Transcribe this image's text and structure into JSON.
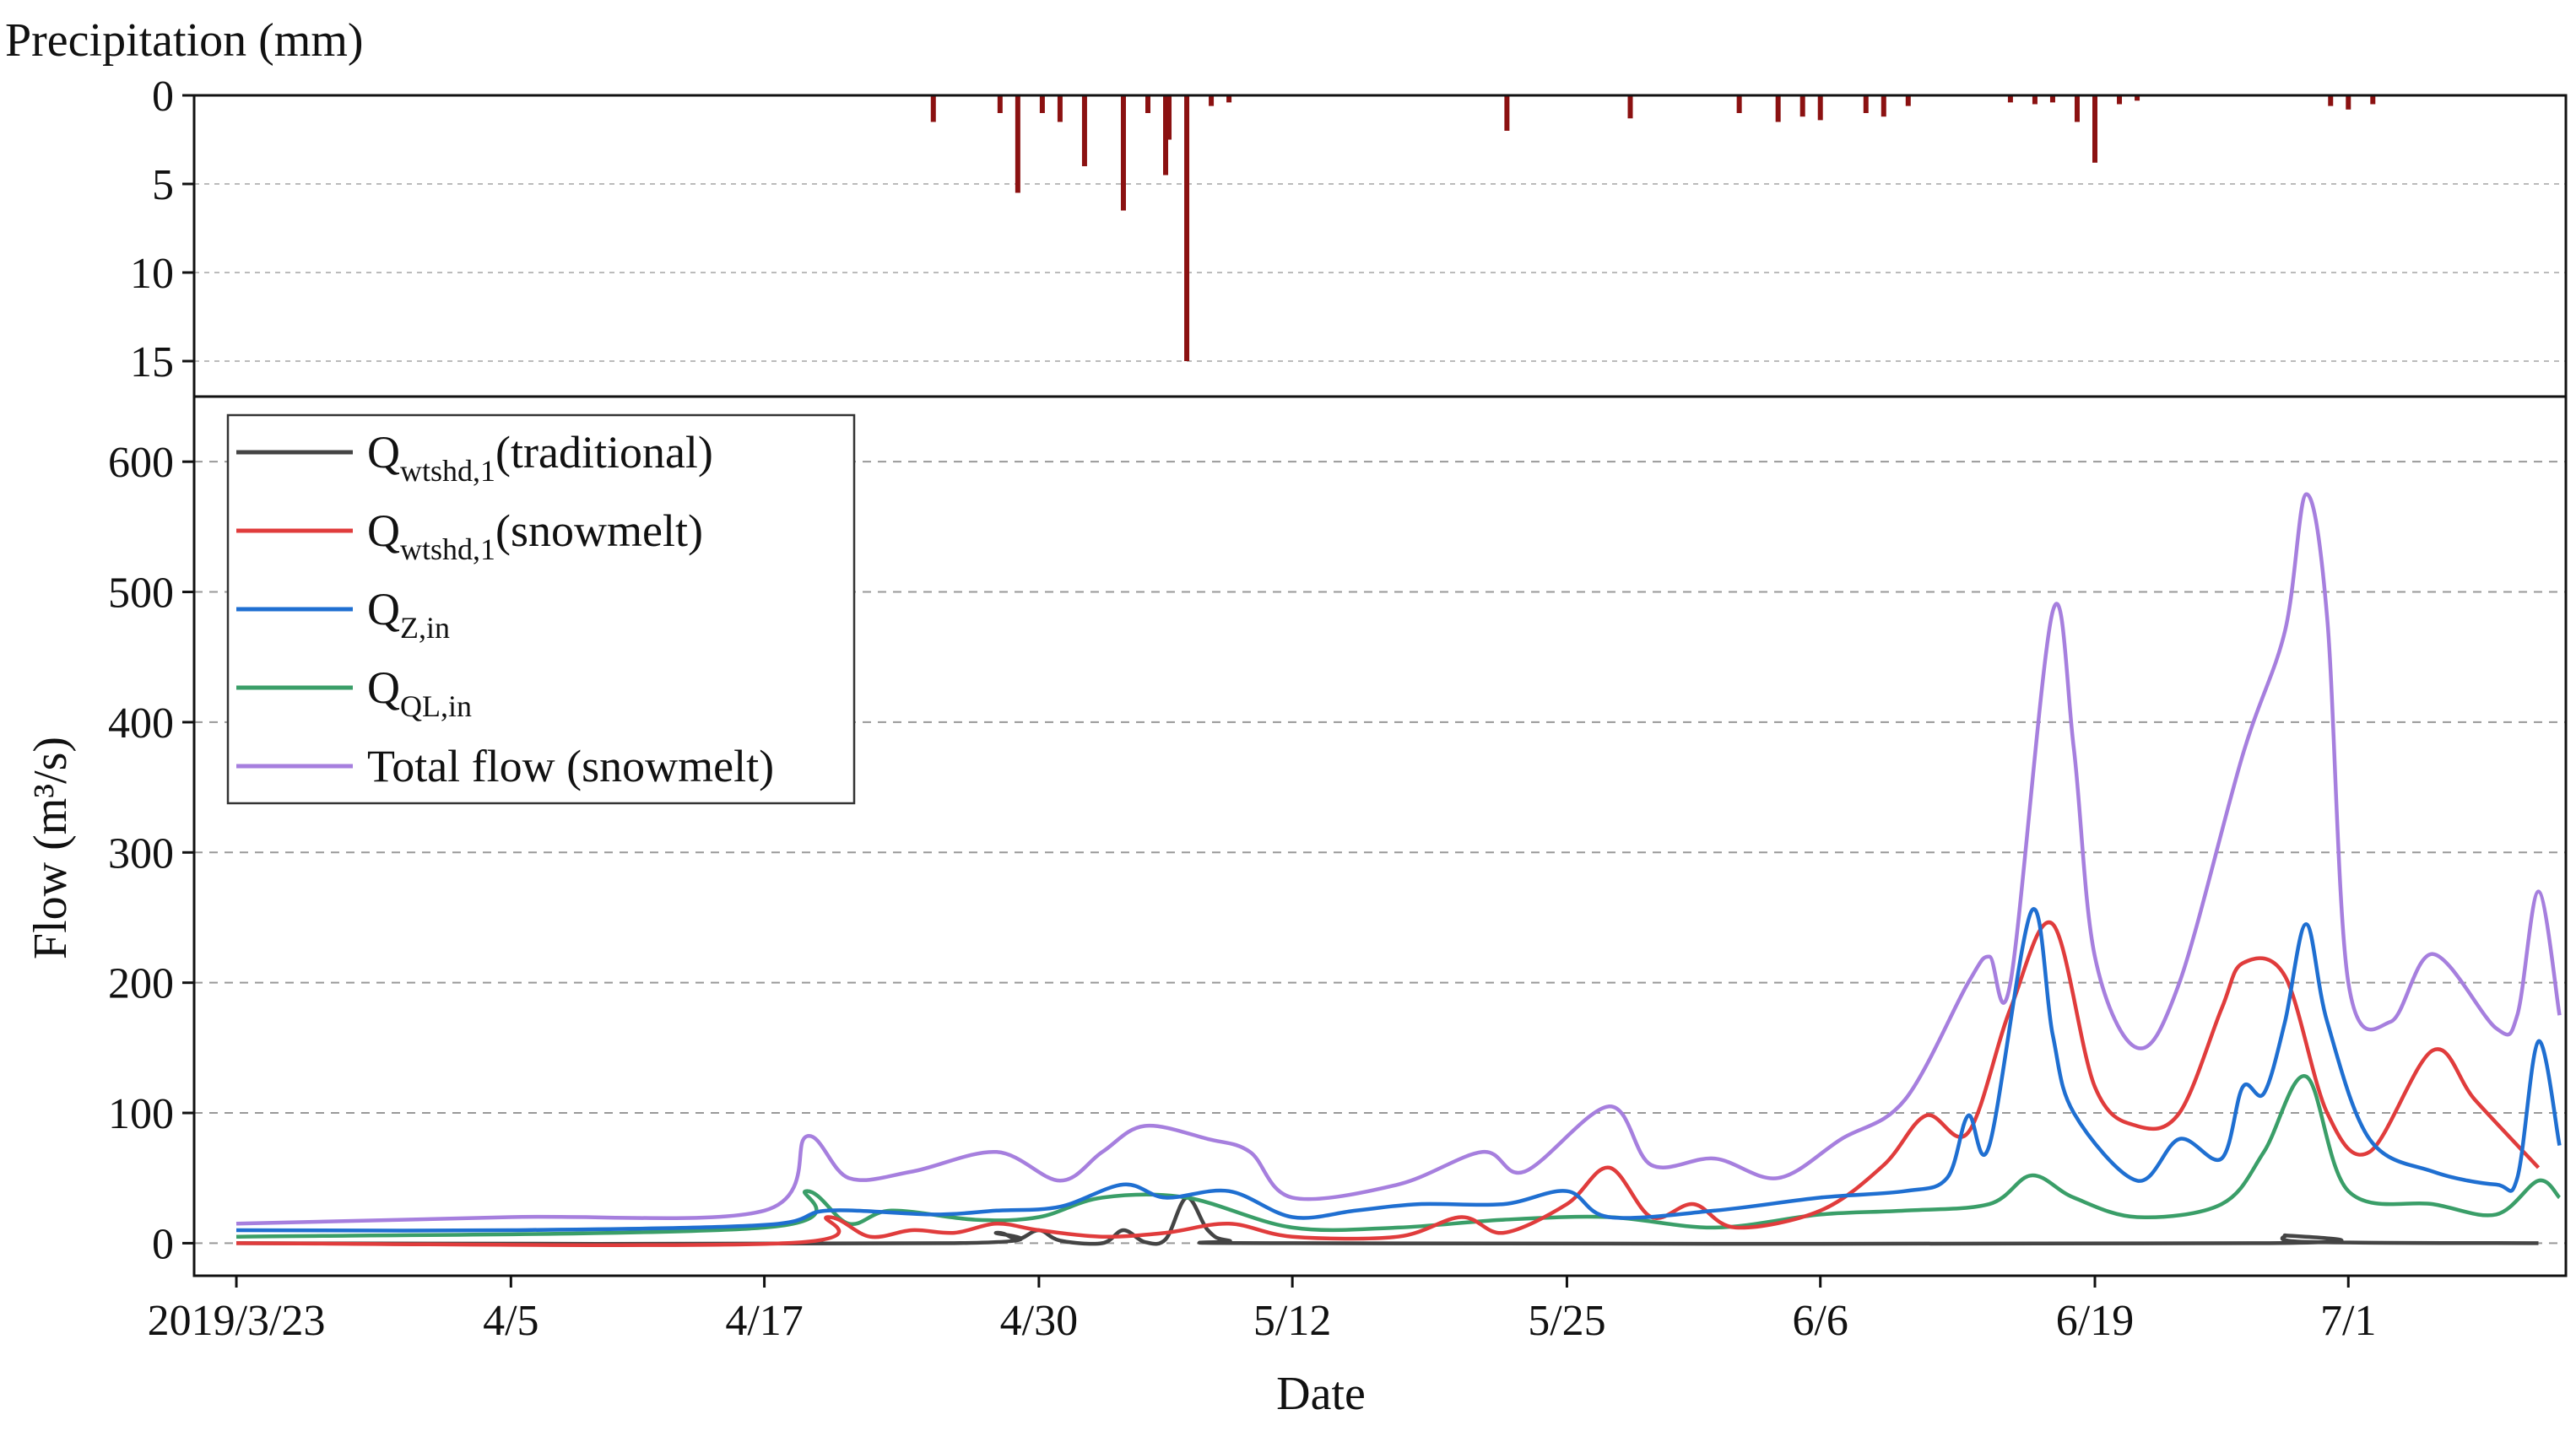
{
  "chart_data": [
    {
      "type": "bar",
      "title": "",
      "ylabel": "Precipitation (mm)",
      "y_inverted": true,
      "ylim": [
        0,
        17
      ],
      "yticks": [
        0,
        5,
        10,
        15
      ],
      "grid": "horizontal-dashed",
      "color": "#8b1111",
      "x": [
        "2019/4/25",
        "2019/4/28",
        "2019/4/29",
        "2019/4/30",
        "2019/5/1",
        "2019/5/2",
        "2019/5/4",
        "2019/5/5",
        "2019/5/6",
        "2019/5/6",
        "2019/5/7",
        "2019/5/8",
        "2019/5/9",
        "2019/5/22",
        "2019/5/28",
        "2019/6/2",
        "2019/6/4",
        "2019/6/5",
        "2019/6/6",
        "2019/6/8",
        "2019/6/9",
        "2019/6/10",
        "2019/6/15",
        "2019/6/16",
        "2019/6/17",
        "2019/6/18",
        "2019/6/19",
        "2019/6/20",
        "2019/6/21",
        "2019/6/30",
        "2019/7/1",
        "2019/7/2"
      ],
      "values": [
        1.5,
        1.0,
        5.5,
        1.0,
        1.5,
        4.0,
        6.5,
        1.0,
        4.5,
        2.5,
        15.0,
        0.6,
        0.4,
        2.0,
        1.3,
        1.0,
        1.5,
        1.2,
        1.4,
        1.0,
        1.2,
        0.6,
        0.4,
        0.5,
        0.4,
        1.5,
        3.8,
        0.5,
        0.3,
        0.6,
        0.8,
        0.5
      ]
    },
    {
      "type": "line",
      "title": "",
      "xlabel": "Date",
      "ylabel": "Flow (m³/s)",
      "ylim": [
        -25,
        650
      ],
      "yticks": [
        0,
        100,
        200,
        300,
        400,
        500,
        600
      ],
      "x_tick_labels": [
        "2019/3/23",
        "4/5",
        "4/17",
        "4/30",
        "5/12",
        "5/25",
        "6/6",
        "6/19",
        "7/1"
      ],
      "x_ticks": [
        "2019/3/23",
        "2019/4/5",
        "2019/4/17",
        "2019/4/30",
        "2019/5/12",
        "2019/5/25",
        "2019/6/6",
        "2019/6/19",
        "2019/7/1"
      ],
      "grid": "horizontal-dashed",
      "legend_position": "top-left",
      "series": [
        {
          "name": "Q_wtshd,1(traditional)",
          "label_main": "Q",
          "label_sub": "wtshd,1",
          "label_tail": "(traditional)",
          "color": "#444444",
          "points": [
            [
              "2019/3/23",
              0
            ],
            [
              "2019/4/26",
              0
            ],
            [
              "2019/4/28",
              8
            ],
            [
              "2019/4/29",
              3
            ],
            [
              "2019/4/30",
              10
            ],
            [
              "2019/5/1",
              2
            ],
            [
              "2019/5/3",
              0
            ],
            [
              "2019/5/4",
              10
            ],
            [
              "2019/5/5",
              1
            ],
            [
              "2019/5/6",
              3
            ],
            [
              "2019/5/7",
              35
            ],
            [
              "2019/5/8",
              10
            ],
            [
              "2019/5/9",
              2
            ],
            [
              "2019/5/12",
              0
            ],
            [
              "2019/6/27",
              0
            ],
            [
              "2019/6/28",
              6
            ],
            [
              "2019/6/29",
              1
            ],
            [
              "2019/7/10",
              0
            ]
          ]
        },
        {
          "name": "Q_wtshd,1(snowmelt)",
          "label_main": "Q",
          "label_sub": "wtshd,1",
          "label_tail": "(snowmelt)",
          "color": "#e03c3c",
          "points": [
            [
              "2019/3/23",
              0
            ],
            [
              "2019/4/18",
              0
            ],
            [
              "2019/4/20",
              20
            ],
            [
              "2019/4/22",
              5
            ],
            [
              "2019/4/24",
              10
            ],
            [
              "2019/4/26",
              8
            ],
            [
              "2019/4/28",
              15
            ],
            [
              "2019/4/30",
              10
            ],
            [
              "2019/5/3",
              5
            ],
            [
              "2019/5/6",
              8
            ],
            [
              "2019/5/9",
              15
            ],
            [
              "2019/5/12",
              5
            ],
            [
              "2019/5/17",
              5
            ],
            [
              "2019/5/20",
              20
            ],
            [
              "2019/5/22",
              8
            ],
            [
              "2019/5/25",
              30
            ],
            [
              "2019/5/27",
              58
            ],
            [
              "2019/5/29",
              20
            ],
            [
              "2019/5/31",
              30
            ],
            [
              "2019/6/2",
              12
            ],
            [
              "2019/6/6",
              25
            ],
            [
              "2019/6/9",
              60
            ],
            [
              "2019/6/11",
              98
            ],
            [
              "2019/6/13",
              85
            ],
            [
              "2019/6/15",
              180
            ],
            [
              "2019/6/17",
              245
            ],
            [
              "2019/6/19",
              120
            ],
            [
              "2019/6/21",
              90
            ],
            [
              "2019/6/23",
              100
            ],
            [
              "2019/6/25",
              180
            ],
            [
              "2019/6/26",
              215
            ],
            [
              "2019/6/28",
              205
            ],
            [
              "2019/6/30",
              100
            ],
            [
              "2019/7/2",
              70
            ],
            [
              "2019/7/5",
              148
            ],
            [
              "2019/7/7",
              110
            ],
            [
              "2019/7/10",
              58
            ]
          ]
        },
        {
          "name": "Q_Z,in",
          "label_main": "Q",
          "label_sub": "Z,in",
          "label_tail": "",
          "color": "#1f6fd1",
          "points": [
            [
              "2019/3/23",
              10
            ],
            [
              "2019/4/5",
              10
            ],
            [
              "2019/4/17",
              14
            ],
            [
              "2019/4/20",
              25
            ],
            [
              "2019/4/25",
              22
            ],
            [
              "2019/4/28",
              25
            ],
            [
              "2019/5/1",
              28
            ],
            [
              "2019/5/4",
              45
            ],
            [
              "2019/5/6",
              35
            ],
            [
              "2019/5/9",
              40
            ],
            [
              "2019/5/12",
              20
            ],
            [
              "2019/5/15",
              25
            ],
            [
              "2019/5/18",
              30
            ],
            [
              "2019/5/22",
              30
            ],
            [
              "2019/5/25",
              40
            ],
            [
              "2019/5/27",
              20
            ],
            [
              "2019/6/1",
              25
            ],
            [
              "2019/6/6",
              35
            ],
            [
              "2019/6/10",
              40
            ],
            [
              "2019/6/12",
              50
            ],
            [
              "2019/6/13",
              98
            ],
            [
              "2019/6/14",
              75
            ],
            [
              "2019/6/16",
              255
            ],
            [
              "2019/6/17",
              160
            ],
            [
              "2019/6/18",
              100
            ],
            [
              "2019/6/21",
              48
            ],
            [
              "2019/6/23",
              80
            ],
            [
              "2019/6/25",
              65
            ],
            [
              "2019/6/26",
              120
            ],
            [
              "2019/6/27",
              115
            ],
            [
              "2019/6/28",
              170
            ],
            [
              "2019/6/29",
              245
            ],
            [
              "2019/6/30",
              170
            ],
            [
              "2019/7/2",
              80
            ],
            [
              "2019/7/5",
              55
            ],
            [
              "2019/7/8",
              45
            ],
            [
              "2019/7/9",
              50
            ],
            [
              "2019/7/10",
              155
            ],
            [
              "2019/7/11",
              75
            ]
          ]
        },
        {
          "name": "Q_QL,in",
          "label_main": "Q",
          "label_sub": "QL,in",
          "label_tail": "",
          "color": "#3a9e68",
          "points": [
            [
              "2019/3/23",
              5
            ],
            [
              "2019/4/17",
              12
            ],
            [
              "2019/4/19",
              40
            ],
            [
              "2019/4/21",
              15
            ],
            [
              "2019/4/23",
              25
            ],
            [
              "2019/4/27",
              18
            ],
            [
              "2019/4/30",
              20
            ],
            [
              "2019/5/3",
              35
            ],
            [
              "2019/5/7",
              35
            ],
            [
              "2019/5/12",
              12
            ],
            [
              "2019/5/17",
              12
            ],
            [
              "2019/5/22",
              18
            ],
            [
              "2019/5/27",
              20
            ],
            [
              "2019/6/1",
              12
            ],
            [
              "2019/6/6",
              22
            ],
            [
              "2019/6/10",
              25
            ],
            [
              "2019/6/14",
              30
            ],
            [
              "2019/6/16",
              52
            ],
            [
              "2019/6/18",
              35
            ],
            [
              "2019/6/21",
              20
            ],
            [
              "2019/6/25",
              30
            ],
            [
              "2019/6/27",
              70
            ],
            [
              "2019/6/29",
              128
            ],
            [
              "2019/7/1",
              40
            ],
            [
              "2019/7/5",
              30
            ],
            [
              "2019/7/8",
              22
            ],
            [
              "2019/7/10",
              48
            ],
            [
              "2019/7/11",
              35
            ]
          ]
        },
        {
          "name": "Total flow (snowmelt)",
          "label_main": "Total flow (snowmelt)",
          "label_sub": "",
          "label_tail": "",
          "color": "#a67fde",
          "points": [
            [
              "2019/3/23",
              15
            ],
            [
              "2019/4/5",
              20
            ],
            [
              "2019/4/17",
              25
            ],
            [
              "2019/4/19",
              82
            ],
            [
              "2019/4/21",
              50
            ],
            [
              "2019/4/24",
              55
            ],
            [
              "2019/4/28",
              70
            ],
            [
              "2019/5/1",
              48
            ],
            [
              "2019/5/3",
              70
            ],
            [
              "2019/5/5",
              90
            ],
            [
              "2019/5/8",
              80
            ],
            [
              "2019/5/10",
              70
            ],
            [
              "2019/5/12",
              35
            ],
            [
              "2019/5/17",
              45
            ],
            [
              "2019/5/21",
              70
            ],
            [
              "2019/5/23",
              55
            ],
            [
              "2019/5/27",
              105
            ],
            [
              "2019/5/29",
              60
            ],
            [
              "2019/6/1",
              65
            ],
            [
              "2019/6/4",
              50
            ],
            [
              "2019/6/7",
              80
            ],
            [
              "2019/6/10",
              110
            ],
            [
              "2019/6/13",
              200
            ],
            [
              "2019/6/14",
              220
            ],
            [
              "2019/6/15",
              200
            ],
            [
              "2019/6/17",
              485
            ],
            [
              "2019/6/18",
              380
            ],
            [
              "2019/6/19",
              220
            ],
            [
              "2019/6/21",
              150
            ],
            [
              "2019/6/23",
              200
            ],
            [
              "2019/6/26",
              375
            ],
            [
              "2019/6/28",
              470
            ],
            [
              "2019/6/29",
              575
            ],
            [
              "2019/6/30",
              480
            ],
            [
              "2019/7/1",
              200
            ],
            [
              "2019/7/3",
              170
            ],
            [
              "2019/7/5",
              222
            ],
            [
              "2019/7/8",
              165
            ],
            [
              "2019/7/9",
              175
            ],
            [
              "2019/7/10",
              270
            ],
            [
              "2019/7/11",
              175
            ]
          ]
        }
      ]
    }
  ]
}
